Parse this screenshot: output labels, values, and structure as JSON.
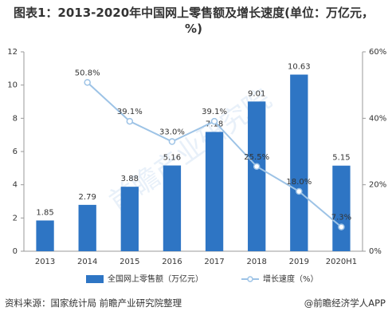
{
  "chart_data": {
    "type": "bar",
    "title": "图表1：2013-2020年中国网上零售额及增长速度(单位：万亿元，%)",
    "watermark": "前瞻产业研究院",
    "categories": [
      "2013",
      "2014",
      "2015",
      "2016",
      "2017",
      "2018",
      "2019",
      "2020H1"
    ],
    "series": [
      {
        "name": "全国网上零售额（万亿元）",
        "type": "bar",
        "color": "#2e75c4",
        "values": [
          1.85,
          2.79,
          3.88,
          5.16,
          7.18,
          9.01,
          10.63,
          5.15
        ]
      },
      {
        "name": "增长速度（%）",
        "type": "line",
        "axis": "y2",
        "color": "#9dc3e6",
        "values": [
          null,
          50.8,
          39.1,
          33.0,
          39.1,
          25.5,
          18.0,
          7.3
        ],
        "value_labels": [
          null,
          "50.8%",
          "39.1%",
          "33.0%",
          "39.1%",
          "25.5%",
          "18.0%",
          "7.3%"
        ]
      }
    ],
    "ylim": [
      0,
      12
    ],
    "yticks": [
      0,
      2,
      4,
      6,
      8,
      10,
      12
    ],
    "y2lim": [
      0,
      60
    ],
    "y2ticks": [
      {
        "value": 0,
        "label": "0%"
      },
      {
        "value": 20,
        "label": "20%"
      },
      {
        "value": 40,
        "label": "40%"
      },
      {
        "value": 60,
        "label": "60%"
      }
    ]
  },
  "footer": {
    "source": "资料来源：国家统计局 前瞻产业研究院整理",
    "brand": "@前瞻经济学人APP"
  }
}
